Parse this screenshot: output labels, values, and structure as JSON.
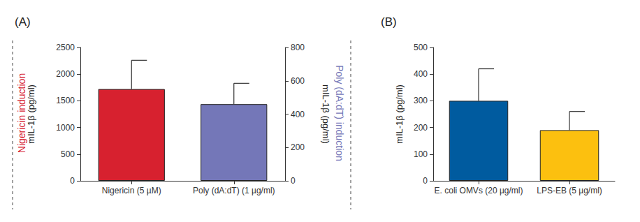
{
  "chart_data": [
    {
      "type": "bar",
      "title": "(A)",
      "categories": [
        "Nigericin (5 µM)",
        "Poly (dA:dT) (1 µg/ml)"
      ],
      "ylabel": "mIL-1β (pg/ml)",
      "y2label": "mIL-1β (pg/ml)",
      "annotations": [
        "Nigericin induction",
        "Poly (dA:dT) induction"
      ],
      "series": [
        {
          "name": "Nigericin induction",
          "color": "#d7212f",
          "axis": "y",
          "values": [
            1720,
            null
          ],
          "errors": [
            540,
            null
          ]
        },
        {
          "name": "Poly (dA:dT) induction",
          "color": "#7477b8",
          "axis": "y2",
          "values": [
            null,
            460
          ],
          "errors": [
            null,
            125
          ]
        }
      ],
      "ylim": [
        0,
        2500
      ],
      "yticks": [
        0,
        500,
        1000,
        1500,
        2000,
        2500
      ],
      "y2lim": [
        0,
        800
      ],
      "y2ticks": [
        0,
        200,
        400,
        600,
        800
      ],
      "grid": false
    },
    {
      "type": "bar",
      "title": "(B)",
      "categories": [
        "E. coli OMVs (20 µg/ml)",
        "LPS-EB (5 µg/ml)"
      ],
      "ylabel": "mIL-1β (pg/ml)",
      "values": [
        300,
        190
      ],
      "errors": [
        120,
        70
      ],
      "colors": [
        "#005b9f",
        "#fcc00f"
      ],
      "ylim": [
        0,
        500
      ],
      "yticks": [
        0,
        100,
        200,
        300,
        400,
        500
      ],
      "grid": false
    }
  ]
}
